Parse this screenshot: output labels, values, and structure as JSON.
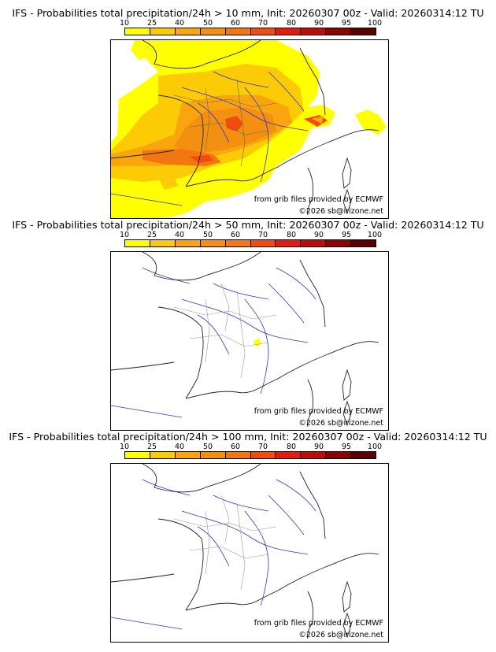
{
  "scale": {
    "labels": [
      "10",
      "25",
      "40",
      "50",
      "60",
      "70",
      "80",
      "90",
      "95",
      "100"
    ],
    "colors": [
      "#ffff00",
      "#fccb06",
      "#f9a60e",
      "#f4900f",
      "#f27710",
      "#f14d0f",
      "#e41b12",
      "#bd0c0c",
      "#8c0505",
      "#5a0000"
    ]
  },
  "panels": [
    {
      "title": "IFS - Probabilities total precipitation/24h > 10 mm, Init: 20260307 00z - Valid: 20260314:12 TU",
      "credit": "from grib files provided by ECMWF",
      "copyright": "©2026 sb@irizone.net",
      "precip": "widespread"
    },
    {
      "title": "IFS - Probabilities total precipitation/24h > 50 mm, Init: 20260307 00z - Valid: 20260314:12 TU",
      "credit": "from grib files provided by ECMWF",
      "copyright": "©2026 sb@irizone.net",
      "precip": "isolated"
    },
    {
      "title": "IFS - Probabilities total precipitation/24h > 100 mm, Init: 20260307 00z - Valid: 20260314:12 TU",
      "credit": "from grib files provided by ECMWF",
      "copyright": "©2026 sb@irizone.net",
      "precip": "none"
    }
  ]
}
